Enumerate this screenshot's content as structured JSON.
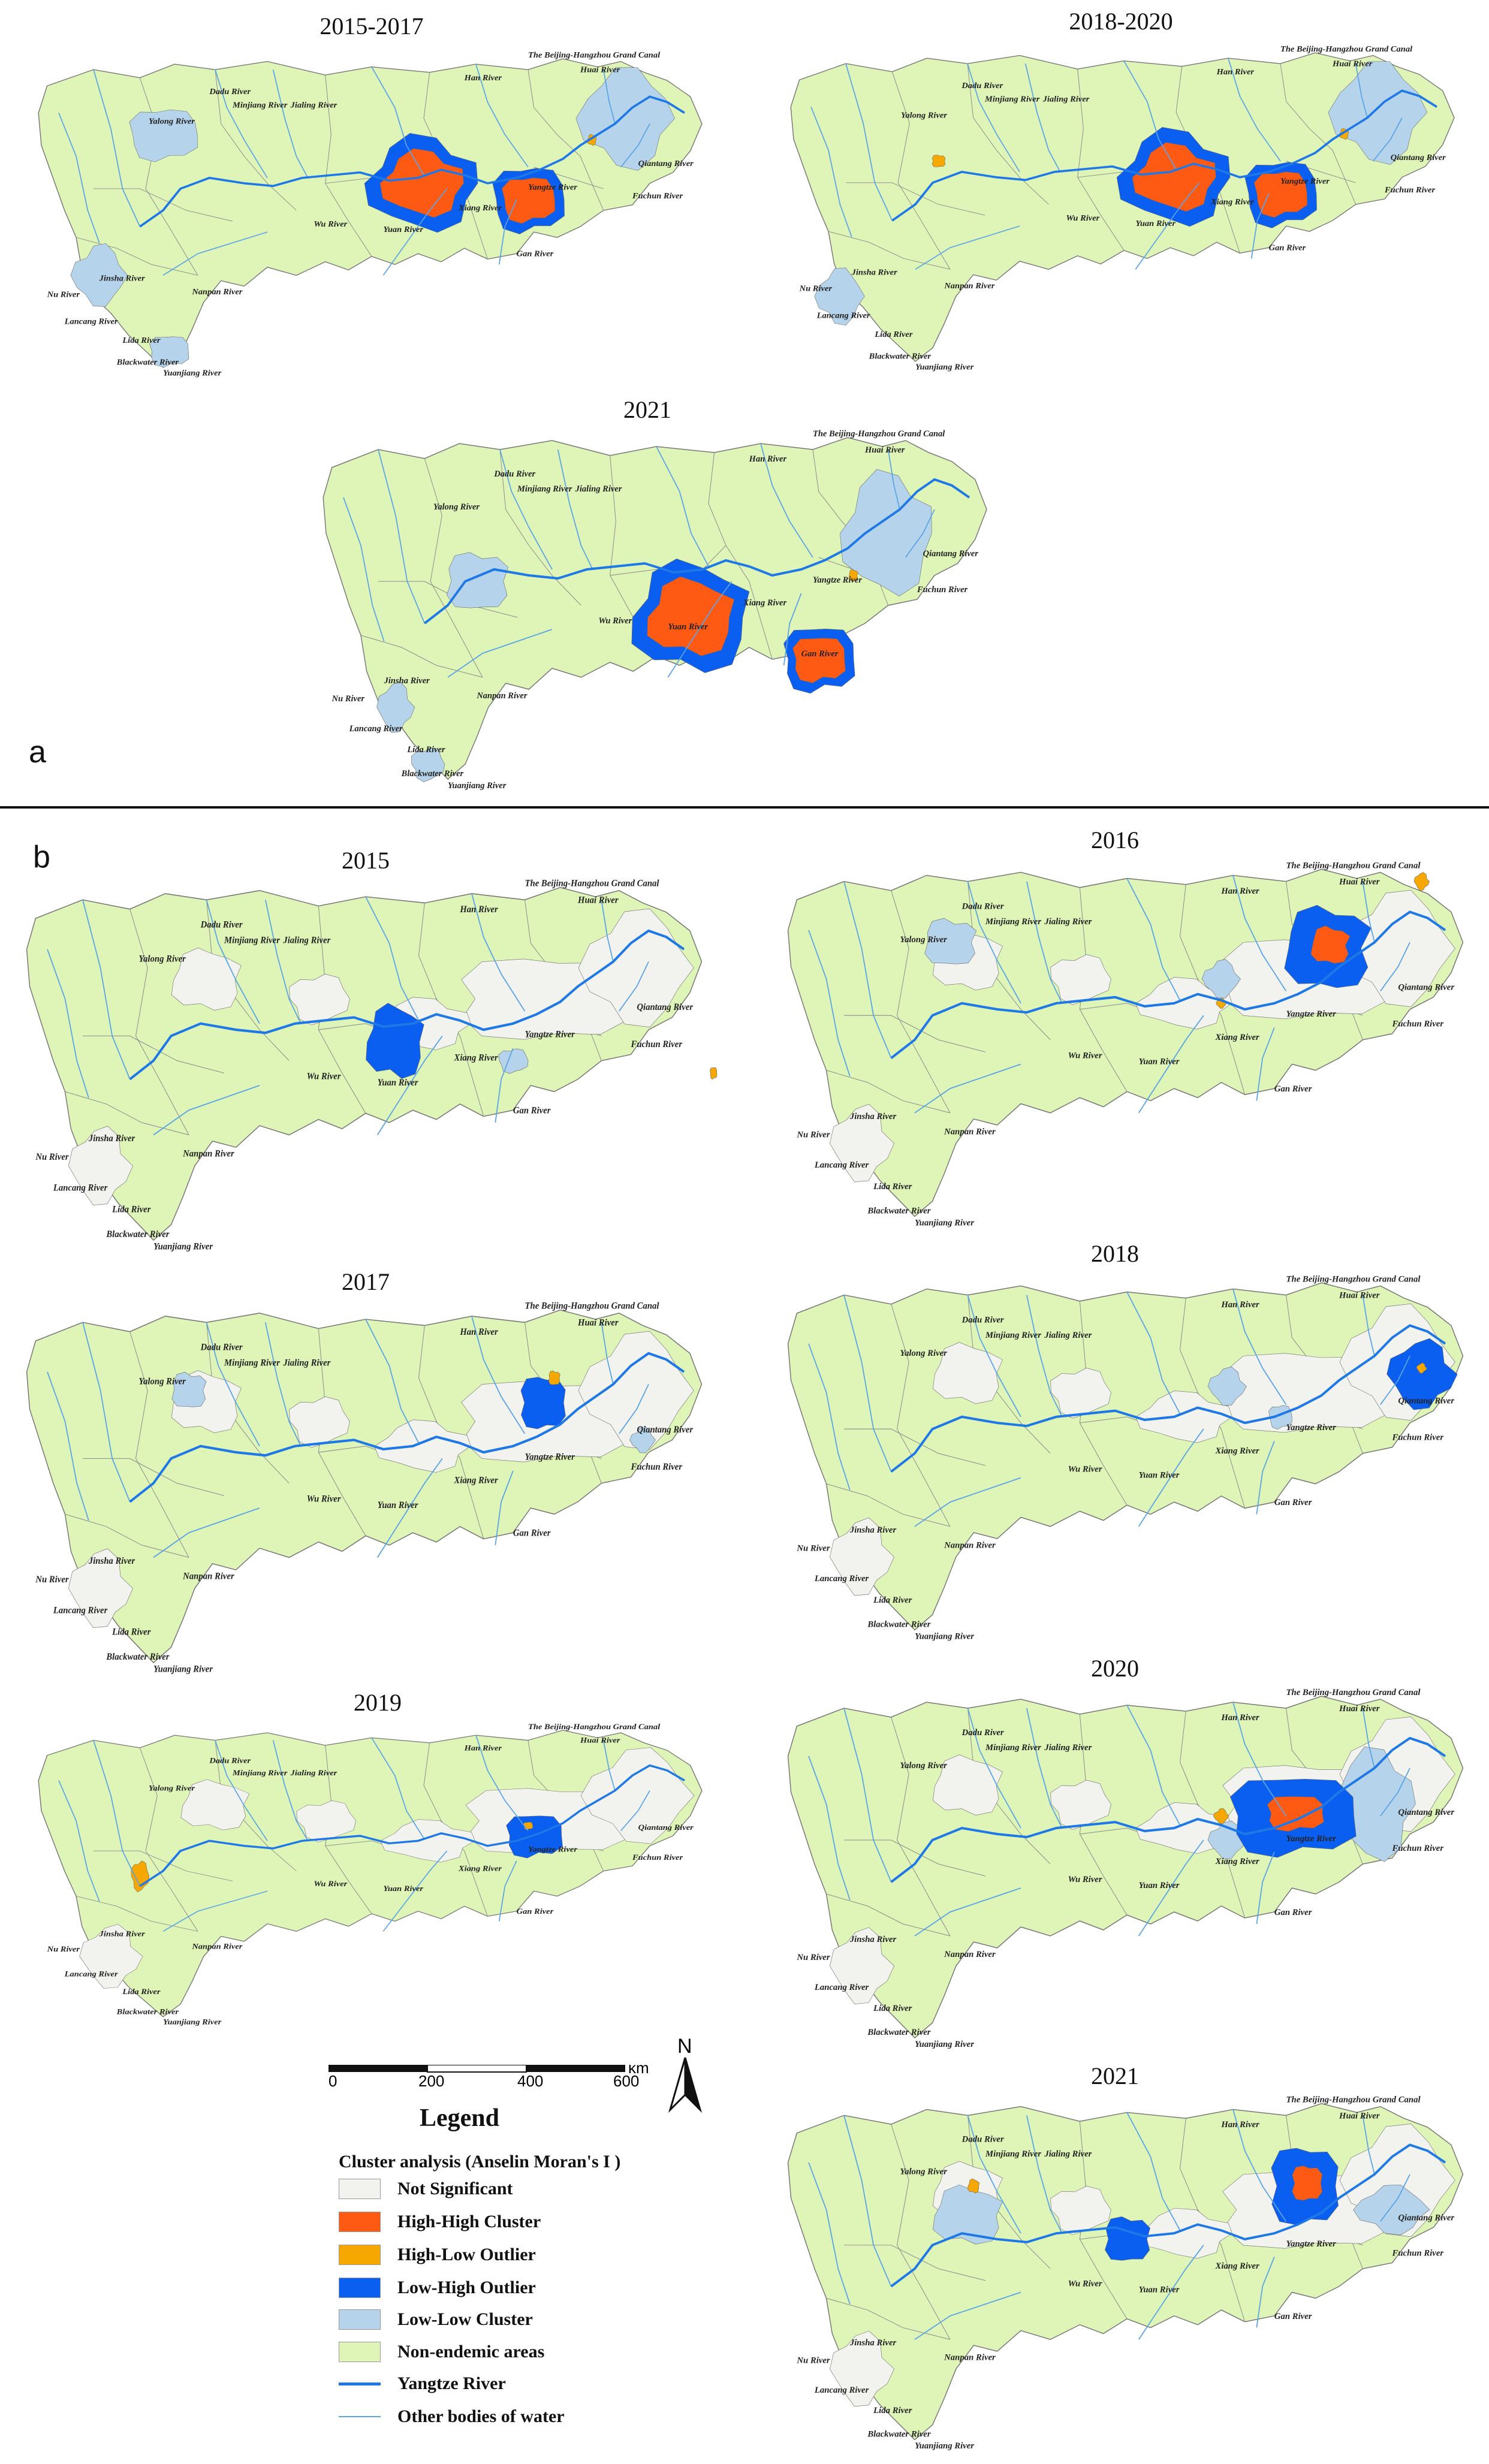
{
  "panel_a_label": "a",
  "panel_b_label": "b",
  "panels_a": [
    {
      "title": "2015-2017"
    },
    {
      "title": "2018-2020"
    },
    {
      "title": "2021"
    }
  ],
  "panels_b": [
    {
      "title": "2015"
    },
    {
      "title": "2016"
    },
    {
      "title": "2017"
    },
    {
      "title": "2018"
    },
    {
      "title": "2019"
    },
    {
      "title": "2020"
    },
    {
      "title": "2021"
    }
  ],
  "river_labels": [
    "The Beijing-Hangzhou Grand Canal",
    "Huai River",
    "Han River",
    "Jialing River",
    "Minjiang River",
    "Dadu River",
    "Yalong River",
    "Xiang River",
    "Yangtze River",
    "Qiantang River",
    "Fuchun River",
    "Wu River",
    "Yuan River",
    "Gan River",
    "Jinsha River",
    "Nu River",
    "Lancang River",
    "Nanpan River",
    "Lida River",
    "Blackwater River",
    "Yuanjiang River"
  ],
  "colors": {
    "not_significant": "#f2f2ee",
    "high_high": "#ff5a14",
    "high_low": "#f6a800",
    "low_high": "#0a5ef0",
    "low_low": "#b5d3ea",
    "non_endemic": "#dff5b8",
    "yangtze": "#1e78e6",
    "other_water": "#5aa4e6"
  },
  "scale": {
    "unit": "km",
    "ticks": [
      "0",
      "200",
      "400",
      "600"
    ]
  },
  "north_label": "N",
  "legend": {
    "title": "Legend",
    "subtitle": "Cluster analysis (Anselin Moran's I )",
    "items": [
      {
        "label": "Not Significant",
        "kind": "box",
        "color": "#f2f2ee"
      },
      {
        "label": "High-High Cluster",
        "kind": "box",
        "color": "#ff5a14"
      },
      {
        "label": "High-Low Outlier",
        "kind": "box",
        "color": "#f6a800"
      },
      {
        "label": "Low-High Outlier",
        "kind": "box",
        "color": "#0a5ef0"
      },
      {
        "label": "Low-Low Cluster",
        "kind": "box",
        "color": "#b5d3ea"
      },
      {
        "label": "Non-endemic areas",
        "kind": "box",
        "color": "#dff5b8"
      },
      {
        "label": "Yangtze River",
        "kind": "line",
        "color": "#1e78e6"
      },
      {
        "label": "Other bodies of water",
        "kind": "line",
        "color": "#5aa4e6"
      }
    ]
  }
}
